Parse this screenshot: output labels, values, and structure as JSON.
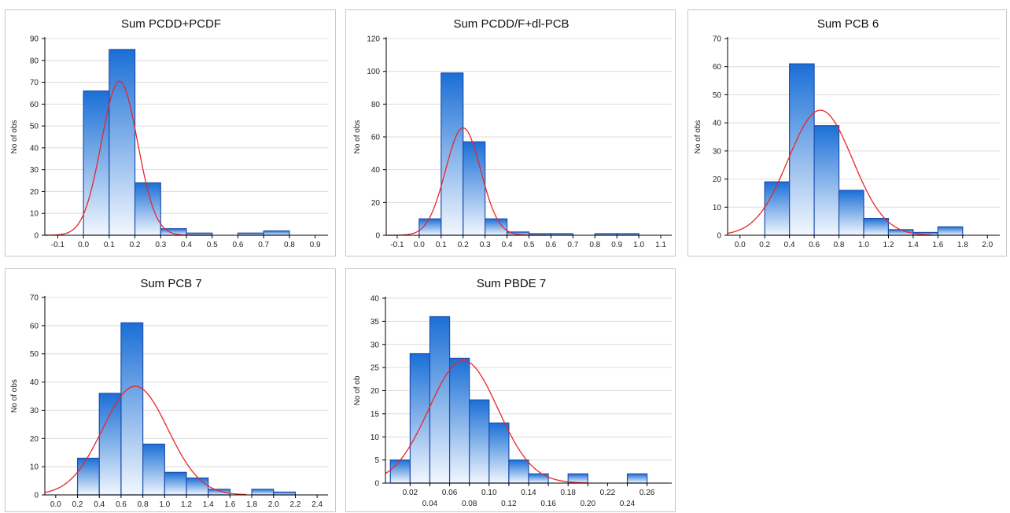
{
  "chart_data": [
    {
      "type": "bar",
      "title": "Sum PCDD+PCDF",
      "ylabel": "No of obs",
      "xlabel": "",
      "ylim": [
        0,
        90
      ],
      "yticks": [
        0,
        10,
        20,
        30,
        40,
        50,
        60,
        70,
        80,
        90
      ],
      "xlim": [
        -0.15,
        0.95
      ],
      "xticks": [
        -0.1,
        0.0,
        0.1,
        0.2,
        0.3,
        0.4,
        0.5,
        0.6,
        0.7,
        0.8,
        0.9
      ],
      "xtick_labels": [
        "-0.1",
        "0.0",
        "0.1",
        "0.2",
        "0.3",
        "0.4",
        "0.5",
        "0.6",
        "0.7",
        "0.8",
        "0.9"
      ],
      "bins": [
        {
          "from": 0.0,
          "to": 0.1,
          "count": 66
        },
        {
          "from": 0.1,
          "to": 0.2,
          "count": 85
        },
        {
          "from": 0.2,
          "to": 0.3,
          "count": 24
        },
        {
          "from": 0.3,
          "to": 0.4,
          "count": 3
        },
        {
          "from": 0.4,
          "to": 0.5,
          "count": 1
        },
        {
          "from": 0.5,
          "to": 0.6,
          "count": 0
        },
        {
          "from": 0.6,
          "to": 0.7,
          "count": 1
        },
        {
          "from": 0.7,
          "to": 0.8,
          "count": 2
        }
      ],
      "normal_fit": {
        "mean": 0.14,
        "sd": 0.07,
        "peak": 70.5,
        "x_range": [
          -0.15,
          0.5
        ]
      }
    },
    {
      "type": "bar",
      "title": "Sum PCDD/F+dl-PCB",
      "ylabel": "No of obs",
      "xlabel": "",
      "ylim": [
        0,
        120
      ],
      "yticks": [
        0,
        20,
        40,
        60,
        80,
        100,
        120
      ],
      "xlim": [
        -0.15,
        1.15
      ],
      "xticks": [
        -0.1,
        0.0,
        0.1,
        0.2,
        0.3,
        0.4,
        0.5,
        0.6,
        0.7,
        0.8,
        0.9,
        1.0,
        1.1
      ],
      "xtick_labels": [
        "-0.1",
        "0.0",
        "0.1",
        "0.2",
        "0.3",
        "0.4",
        "0.5",
        "0.6",
        "0.7",
        "0.8",
        "0.9",
        "1.0",
        "1.1"
      ],
      "bins": [
        {
          "from": 0.0,
          "to": 0.1,
          "count": 10
        },
        {
          "from": 0.1,
          "to": 0.2,
          "count": 99
        },
        {
          "from": 0.2,
          "to": 0.3,
          "count": 57
        },
        {
          "from": 0.3,
          "to": 0.4,
          "count": 10
        },
        {
          "from": 0.4,
          "to": 0.5,
          "count": 2
        },
        {
          "from": 0.5,
          "to": 0.6,
          "count": 1
        },
        {
          "from": 0.6,
          "to": 0.7,
          "count": 1
        },
        {
          "from": 0.7,
          "to": 0.8,
          "count": 0
        },
        {
          "from": 0.8,
          "to": 0.9,
          "count": 1
        },
        {
          "from": 0.9,
          "to": 1.0,
          "count": 1
        }
      ],
      "normal_fit": {
        "mean": 0.2,
        "sd": 0.08,
        "peak": 65.5,
        "x_range": [
          -0.15,
          0.58
        ]
      }
    },
    {
      "type": "bar",
      "title": "Sum PCB 6",
      "ylabel": "No of obs",
      "xlabel": "",
      "ylim": [
        0,
        70
      ],
      "yticks": [
        0,
        10,
        20,
        30,
        40,
        50,
        60,
        70
      ],
      "xlim": [
        -0.1,
        2.1
      ],
      "xticks": [
        0.0,
        0.2,
        0.4,
        0.6,
        0.8,
        1.0,
        1.2,
        1.4,
        1.6,
        1.8,
        2.0
      ],
      "xtick_labels": [
        "0.0",
        "0.2",
        "0.4",
        "0.6",
        "0.8",
        "1.0",
        "1.2",
        "1.4",
        "1.6",
        "1.8",
        "2.0"
      ],
      "bins": [
        {
          "from": 0.2,
          "to": 0.4,
          "count": 19
        },
        {
          "from": 0.4,
          "to": 0.6,
          "count": 61
        },
        {
          "from": 0.6,
          "to": 0.8,
          "count": 39
        },
        {
          "from": 0.8,
          "to": 1.0,
          "count": 16
        },
        {
          "from": 1.0,
          "to": 1.2,
          "count": 6
        },
        {
          "from": 1.2,
          "to": 1.4,
          "count": 2
        },
        {
          "from": 1.4,
          "to": 1.6,
          "count": 1
        },
        {
          "from": 1.6,
          "to": 1.8,
          "count": 3
        }
      ],
      "normal_fit": {
        "mean": 0.65,
        "sd": 0.26,
        "peak": 44.5,
        "x_range": [
          -0.1,
          1.55
        ]
      }
    },
    {
      "type": "bar",
      "title": "Sum PCB 7",
      "ylabel": "No of obs",
      "xlabel": "",
      "ylim": [
        0,
        70
      ],
      "yticks": [
        0,
        10,
        20,
        30,
        40,
        50,
        60,
        70
      ],
      "xlim": [
        -0.1,
        2.5
      ],
      "xticks": [
        0.0,
        0.2,
        0.4,
        0.6,
        0.8,
        1.0,
        1.2,
        1.4,
        1.6,
        1.8,
        2.0,
        2.2,
        2.4
      ],
      "xtick_labels": [
        "0.0",
        "0.2",
        "0.4",
        "0.6",
        "0.8",
        "1.0",
        "1.2",
        "1.4",
        "1.6",
        "1.8",
        "2.0",
        "2.2",
        "2.4"
      ],
      "bins": [
        {
          "from": 0.2,
          "to": 0.4,
          "count": 13
        },
        {
          "from": 0.4,
          "to": 0.6,
          "count": 36
        },
        {
          "from": 0.6,
          "to": 0.8,
          "count": 61
        },
        {
          "from": 0.8,
          "to": 1.0,
          "count": 18
        },
        {
          "from": 1.0,
          "to": 1.2,
          "count": 8
        },
        {
          "from": 1.2,
          "to": 1.4,
          "count": 6
        },
        {
          "from": 1.4,
          "to": 1.6,
          "count": 2
        },
        {
          "from": 1.6,
          "to": 1.8,
          "count": 0
        },
        {
          "from": 1.8,
          "to": 2.0,
          "count": 2
        },
        {
          "from": 2.0,
          "to": 2.2,
          "count": 1
        }
      ],
      "normal_fit": {
        "mean": 0.73,
        "sd": 0.3,
        "peak": 38.5,
        "x_range": [
          -0.1,
          1.75
        ]
      }
    },
    {
      "type": "bar",
      "title": "Sum PBDE 7",
      "ylabel": "No of ob",
      "xlabel": "",
      "ylim": [
        0,
        40
      ],
      "yticks": [
        0,
        5,
        10,
        15,
        20,
        25,
        30,
        35,
        40
      ],
      "xlim": [
        -0.005,
        0.285
      ],
      "xticks": [
        0.02,
        0.04,
        0.06,
        0.08,
        0.1,
        0.12,
        0.14,
        0.16,
        0.18,
        0.2,
        0.22,
        0.24,
        0.26
      ],
      "xtick_labels": [
        "0.02",
        "0.04",
        "0.06",
        "0.08",
        "0.10",
        "0.12",
        "0.14",
        "0.16",
        "0.18",
        "0.20",
        "0.22",
        "0.24",
        "0.26"
      ],
      "bins": [
        {
          "from": 0.0,
          "to": 0.02,
          "count": 5
        },
        {
          "from": 0.02,
          "to": 0.04,
          "count": 28
        },
        {
          "from": 0.04,
          "to": 0.06,
          "count": 36
        },
        {
          "from": 0.06,
          "to": 0.08,
          "count": 27
        },
        {
          "from": 0.08,
          "to": 0.1,
          "count": 18
        },
        {
          "from": 0.1,
          "to": 0.12,
          "count": 13
        },
        {
          "from": 0.12,
          "to": 0.14,
          "count": 5
        },
        {
          "from": 0.14,
          "to": 0.16,
          "count": 2
        },
        {
          "from": 0.16,
          "to": 0.18,
          "count": 0
        },
        {
          "from": 0.18,
          "to": 0.2,
          "count": 2
        },
        {
          "from": 0.2,
          "to": 0.22,
          "count": 0
        },
        {
          "from": 0.22,
          "to": 0.24,
          "count": 0
        },
        {
          "from": 0.24,
          "to": 0.26,
          "count": 2
        }
      ],
      "normal_fit": {
        "mean": 0.074,
        "sd": 0.035,
        "peak": 26.5,
        "x_range": [
          -0.005,
          0.2
        ]
      }
    }
  ],
  "colors": {
    "bar_top": "#1a6fd6",
    "bar_bottom": "#f2f7fe",
    "bar_edge": "#1f4fae",
    "fit_line": "#e8262a",
    "grid": "#dcdcdc",
    "axis": "#000000"
  }
}
